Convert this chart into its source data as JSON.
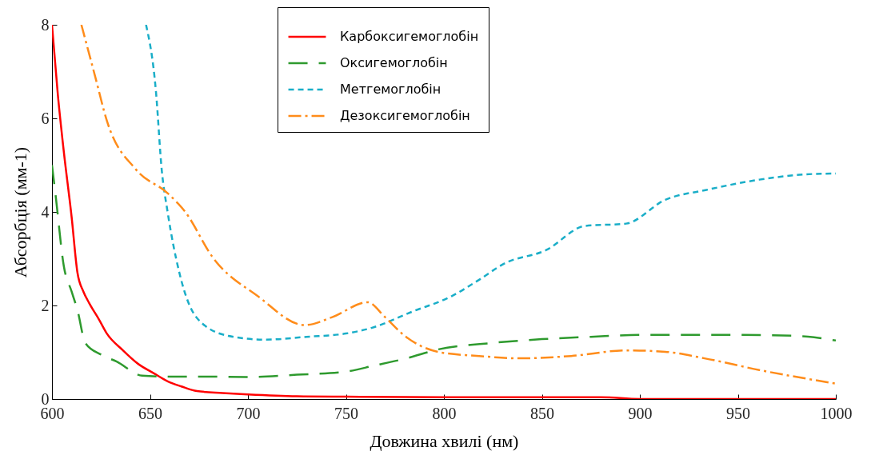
{
  "chart_data": {
    "type": "line",
    "xlabel": "Довжина хвилі (нм)",
    "ylabel": "Абсорбція (мм-1)",
    "xlim": [
      600,
      1000
    ],
    "ylim": [
      0,
      8
    ],
    "xticks": [
      600,
      650,
      700,
      750,
      800,
      850,
      900,
      950,
      1000
    ],
    "yticks": [
      0,
      2,
      4,
      6,
      8
    ],
    "grid": false,
    "legend": "top",
    "marker": "none",
    "series": [
      {
        "name": "Карбоксигемоглобін",
        "color": "#ff0000",
        "line_style": "solid",
        "x": [
          600,
          603,
          606,
          610,
          613,
          616,
          619,
          624,
          628,
          636,
          644,
          652,
          659,
          666,
          674,
          687,
          700,
          725,
          750,
          800,
          850,
          880,
          900,
          950,
          1000
        ],
        "values": [
          8,
          6.5,
          5.3,
          3.9,
          2.7,
          2.3,
          2.05,
          1.7,
          1.4,
          1.05,
          0.75,
          0.55,
          0.38,
          0.27,
          0.17,
          0.13,
          0.1,
          0.06,
          0.05,
          0.04,
          0.04,
          0.04,
          0,
          0,
          0
        ]
      },
      {
        "name": "Оксигемоглобін",
        "color": "#2e9a2e",
        "line_style": "longdash",
        "x": [
          600,
          602,
          606,
          610,
          613,
          617,
          625,
          633,
          646,
          660,
          675,
          700,
          725,
          749,
          765,
          781,
          797,
          825,
          850,
          875,
          900,
          950,
          980,
          1000
        ],
        "values": [
          5,
          4.3,
          2.85,
          2.3,
          1.9,
          1.2,
          0.95,
          0.8,
          0.5,
          0.48,
          0.48,
          0.47,
          0.52,
          0.58,
          0.72,
          0.87,
          1.06,
          1.2,
          1.28,
          1.33,
          1.37,
          1.37,
          1.35,
          1.25
        ]
      },
      {
        "name": "Метгемоглобін",
        "color": "#1aaec8",
        "line_style": "dashed",
        "x": [
          648,
          653,
          656,
          659,
          665,
          674,
          690,
          709,
          730,
          750,
          763,
          784,
          804,
          818,
          831,
          852,
          872,
          893,
          913,
          934,
          961,
          988,
          1000
        ],
        "values": [
          8,
          6.6,
          4.9,
          4,
          2.7,
          1.73,
          1.35,
          1.27,
          1.33,
          1.4,
          1.52,
          1.87,
          2.2,
          2.55,
          2.9,
          3.18,
          3.7,
          3.75,
          4.26,
          4.47,
          4.69,
          4.81,
          4.82
        ]
      },
      {
        "name": "Дезоксигемоглобін",
        "color": "#ff8c1a",
        "line_style": "dashdot",
        "x": [
          615,
          622,
          628,
          643,
          659,
          668,
          682,
          705,
          729,
          743,
          761,
          770,
          780,
          798,
          818,
          838,
          865,
          893,
          913,
          933,
          961,
          1000
        ],
        "values": [
          8,
          6.9,
          5.95,
          4.9,
          4.4,
          4,
          3.03,
          2.2,
          1.58,
          1.75,
          2.07,
          1.75,
          1.35,
          1,
          0.92,
          0.87,
          0.92,
          1.04,
          1.01,
          0.87,
          0.62,
          0.33
        ]
      }
    ]
  }
}
